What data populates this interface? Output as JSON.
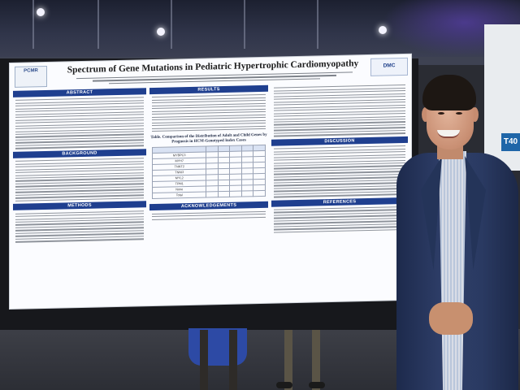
{
  "poster": {
    "title": "Spectrum of Gene Mutations in Pediatric Hypertrophic Cardiomyopathy",
    "left_logo": "PCMR",
    "right_logo": "DMC",
    "sections": {
      "abstract": "ABSTRACT",
      "background": "BACKGROUND",
      "methods": "METHODS",
      "results": "RESULTS",
      "discussion": "DISCUSSION",
      "references": "REFERENCES",
      "acknowledgements": "ACKNOWLEDGEMENTS"
    },
    "table_title": "Table. Comparison of the Distribution of Adult and Child Genes by Prognosis in HCM-Genotyped Index Cases",
    "table_rows": [
      "MYBPC3",
      "MYH7",
      "TNNT2",
      "TNNI3",
      "MYL2",
      "TPM1",
      "None",
      "Total"
    ]
  },
  "scene": {
    "side_sign": "T40"
  }
}
